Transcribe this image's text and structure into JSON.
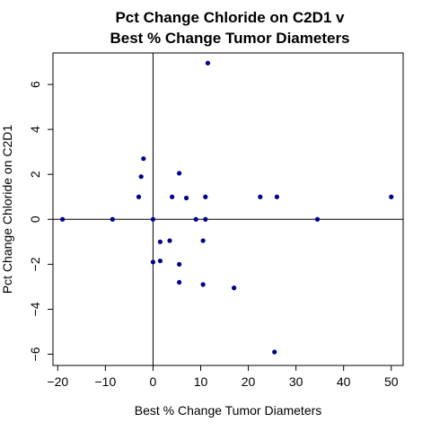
{
  "chart_data": {
    "type": "scatter",
    "title_lines": [
      "Pct Change Chloride on C2D1 v",
      "Best % Change Tumor Diameters"
    ],
    "xlabel": "Best % Change Tumor Diameters",
    "ylabel": "Pct Change Chloride on C2D1",
    "xlim": [
      -21,
      52.5
    ],
    "ylim": [
      -6.5,
      7.4
    ],
    "xticks": [
      -20,
      -10,
      0,
      10,
      20,
      30,
      40,
      50
    ],
    "yticks": [
      -6,
      -4,
      -2,
      0,
      2,
      4,
      6
    ],
    "reference_lines": {
      "x": 0,
      "y": 0
    },
    "grid": false,
    "point_color": "#00008B",
    "x": [
      -19,
      -8.5,
      -2,
      -2.5,
      -3,
      0,
      0,
      1.5,
      1.5,
      3.5,
      4,
      5.5,
      5.5,
      5.5,
      7,
      9,
      10.5,
      10.5,
      11,
      11,
      11.5,
      17,
      22.5,
      25.5,
      26,
      34.5,
      50
    ],
    "y": [
      0,
      0,
      2.7,
      1.9,
      1.0,
      0,
      -1.9,
      -1.0,
      -1.85,
      -0.95,
      1.0,
      2.05,
      -2.0,
      -2.8,
      0.95,
      0,
      -0.95,
      -2.9,
      1.0,
      0,
      6.95,
      -3.05,
      1.0,
      -5.9,
      1.0,
      0,
      1.0
    ]
  }
}
